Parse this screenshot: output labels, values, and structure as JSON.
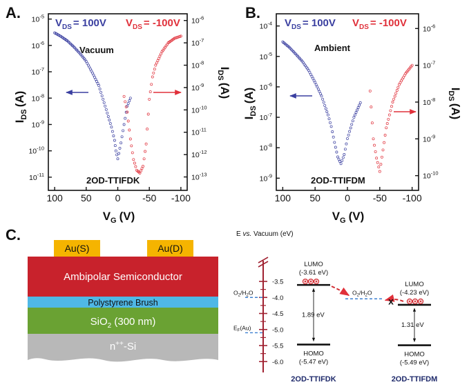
{
  "figure": {
    "panels": [
      {
        "letter": "A.",
        "legend_blue": "V",
        "legend_blue_sub": "DS",
        "legend_blue_val": "= 100V",
        "legend_red": "V",
        "legend_red_sub": "DS",
        "legend_red_val": "= -100V",
        "condition": "Vacuum",
        "material": "2OD-TTIFDK",
        "left_ylabel": "I",
        "left_ylabel_sub": "DS",
        "left_ylabel_unit": "(A)",
        "right_ylabel": "I",
        "right_ylabel_sub": "DS",
        "right_ylabel_unit": "(A)",
        "xlabel": "V",
        "xlabel_sub": "G",
        "xlabel_unit": "(V)",
        "x_ticks": [
          "100",
          "50",
          "0",
          "-50",
          "-100"
        ],
        "left_ticks": [
          "10",
          "10",
          "10",
          "10",
          "10",
          "10",
          "10"
        ],
        "left_exps": [
          "-11",
          "-10",
          "-9",
          "-8",
          "-7",
          "-6",
          "-5"
        ],
        "right_ticks": [
          "10",
          "10",
          "10",
          "10",
          "10",
          "10",
          "10",
          "10"
        ],
        "right_exps": [
          "-13",
          "-12",
          "-11",
          "-10",
          "-9",
          "-8",
          "-7",
          "-6"
        ]
      },
      {
        "letter": "B.",
        "legend_blue": "V",
        "legend_blue_sub": "DS",
        "legend_blue_val": "= 100V",
        "legend_red": "V",
        "legend_red_sub": "DS",
        "legend_red_val": "= -100V",
        "condition": "Ambient",
        "material": "2OD-TTIFDM",
        "left_ylabel": "I",
        "left_ylabel_sub": "DS",
        "left_ylabel_unit": "(A)",
        "right_ylabel": "I",
        "right_ylabel_sub": "DS",
        "right_ylabel_unit": "(A)",
        "xlabel": "V",
        "xlabel_sub": "G",
        "xlabel_unit": "(V)",
        "x_ticks": [
          "100",
          "50",
          "0",
          "-50",
          "-100"
        ],
        "left_ticks": [
          "10",
          "10",
          "10",
          "10",
          "10",
          "10"
        ],
        "left_exps": [
          "-9",
          "-8",
          "-7",
          "-6",
          "-5",
          "-4"
        ],
        "right_ticks": [
          "10",
          "10",
          "10",
          "10",
          "10"
        ],
        "right_exps": [
          "-10",
          "-9",
          "-8",
          "-7",
          "-6"
        ]
      }
    ],
    "panel_c": {
      "letter": "C.",
      "source": "Au(S)",
      "drain": "Au(D)",
      "semiconductor": "Ambipolar Semiconductor",
      "brush": "Polystyrene Brush",
      "oxide": "SiO",
      "oxide_sub": "2",
      "oxide_rest": " (300 nm)",
      "substrate": "n",
      "substrate_sup": "++",
      "substrate_rest": "-Si",
      "colors": {
        "source_drain": "#f5b400",
        "semiconductor": "#c8222c",
        "brush": "#4fb8e6",
        "oxide": "#6aa233",
        "substrate": "#b8b8b8"
      }
    },
    "energy": {
      "axis_title_a": "E ",
      "axis_title_vs": "vs.",
      "axis_title_b": " Vacuum (eV)",
      "ticks": [
        "-3.5",
        "-4.0",
        "-4.5",
        "-5.0",
        "-5.5",
        "-6.0"
      ],
      "tick_values": [
        -3.5,
        -4.0,
        -4.5,
        -5.0,
        -5.5,
        -6.0
      ],
      "o2_left": "O",
      "o2_left_sub": "2",
      "o2_left_rest": "/H",
      "o2_left_sub2": "2",
      "o2_left_end": "O",
      "o2_mid": "O",
      "o2_mid_sub": "2",
      "o2_mid_rest": "/H",
      "o2_mid_sub2": "2",
      "o2_mid_end": "O",
      "ef": "E",
      "ef_sub": "F",
      "ef_rest": "(Au)",
      "levels": {
        "o2": -4.0,
        "ef": -5.1
      },
      "materials": [
        {
          "lumo_label": "LUMO",
          "lumo_value": "(-3.61 eV)",
          "lumo": -3.61,
          "gap": "1.89 eV",
          "homo_label": "HOMO",
          "homo_value": "(-5.47 eV)",
          "homo": -5.47,
          "name": "2OD-TTIFDK"
        },
        {
          "lumo_label": "LUMO",
          "lumo_value": "(-4.23 eV)",
          "lumo": -4.23,
          "gap": "1.31 eV",
          "homo_label": "HOMO",
          "homo_value": "(-5.49 eV)",
          "homo": -5.49,
          "name": "2OD-TTIFDM"
        }
      ],
      "blocked_mark": "x"
    },
    "colors": {
      "blue": "#3a3fa0",
      "red": "#e0303a",
      "axis": "#111111",
      "energy_axis": "#a02030",
      "navy": "#1f2a6b",
      "dash_blue": "#3b7fd0"
    }
  },
  "chart_data": [
    {
      "type": "scatter",
      "title": "",
      "xlabel": "VG (V)",
      "ylabel": "IDS (A)",
      "y2label": "IDS (A)",
      "xlim": [
        110,
        -110
      ],
      "ylim_log10": [
        -11.5,
        -4.8
      ],
      "y2lim_log10": [
        -13.6,
        -5.7
      ],
      "annotations": [
        "Vacuum",
        "2OD-TTIFDK"
      ],
      "series": [
        {
          "name": "VDS = 100V",
          "axis": "left",
          "color": "#3a3fa0",
          "x": [
            100,
            90,
            80,
            70,
            60,
            50,
            40,
            30,
            20,
            10,
            5,
            3,
            0,
            -5,
            -10,
            -15,
            -20
          ],
          "y": [
            3e-06,
            2.2e-06,
            1.5e-06,
            9e-07,
            5e-07,
            2.5e-07,
            9e-08,
            3e-08,
            5e-09,
            8e-10,
            2.5e-10,
            1e-10,
            5e-11,
            2e-10,
            1e-09,
            5e-09,
            1e-08
          ]
        },
        {
          "name": "VDS = -100V",
          "axis": "right",
          "color": "#e0303a",
          "x": [
            -10,
            -15,
            -20,
            -25,
            -30,
            -35,
            -40,
            -45,
            -50,
            -55,
            -60,
            -70,
            -80,
            -90,
            -100
          ],
          "y": [
            4e-10,
            8e-11,
            5e-12,
            6e-13,
            2e-13,
            1.5e-13,
            3e-13,
            3e-12,
            3e-10,
            3e-09,
            1e-08,
            4e-08,
            1e-07,
            1.6e-07,
            2e-07
          ]
        }
      ]
    },
    {
      "type": "scatter",
      "title": "",
      "xlabel": "VG (V)",
      "ylabel": "IDS (A)",
      "y2label": "IDS (A)",
      "xlim": [
        110,
        -110
      ],
      "ylim_log10": [
        -9.4,
        -3.6
      ],
      "y2lim_log10": [
        -10.4,
        -5.6
      ],
      "annotations": [
        "Ambient",
        "2OD-TTIFDM"
      ],
      "series": [
        {
          "name": "VDS = 100V",
          "axis": "left",
          "color": "#3a3fa0",
          "x": [
            100,
            90,
            80,
            70,
            60,
            50,
            40,
            30,
            25,
            20,
            15,
            10,
            5,
            0,
            -10,
            -20
          ],
          "y": [
            3e-05,
            2e-05,
            1.2e-05,
            7e-06,
            3.5e-06,
            1.4e-06,
            5e-07,
            1.2e-07,
            5e-08,
            1.5e-08,
            5e-09,
            3e-09,
            6e-09,
            2e-08,
            1e-07,
            3e-07
          ]
        },
        {
          "name": "VDS = -100V",
          "axis": "right",
          "color": "#e0303a",
          "x": [
            -35,
            -40,
            -45,
            -50,
            -55,
            -60,
            -70,
            -80,
            -90,
            -100
          ],
          "y": [
            2e-08,
            1e-09,
            3e-10,
            1.3e-10,
            5e-10,
            2e-09,
            1e-08,
            3e-08,
            6e-08,
            1e-07
          ]
        }
      ]
    }
  ]
}
